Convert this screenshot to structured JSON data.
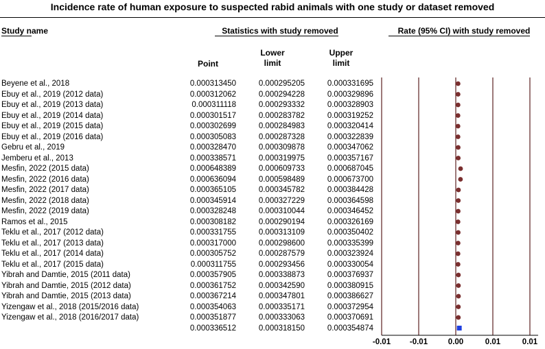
{
  "title": "Incidence rate of human exposure to suspected rabid animals with one study or dataset removed",
  "headers": {
    "study_name": "Study name",
    "statistics": "Statistics with study removed",
    "rate": "Rate (95% CI) with study removed",
    "point": "Point",
    "lower": "Lower limit",
    "lower_l1": "Lower",
    "lower_l2": "limit",
    "upper_l1": "Upper",
    "upper_l2": "limit"
  },
  "rows": [
    {
      "study": "Beyene et al., 2018",
      "point": "0.000313450",
      "lower": "0.000295205",
      "upper": "0.000331695"
    },
    {
      "study": "Ebuy et al., 2019 (2012 data)",
      "point": "0.000312062",
      "lower": "0.000294228",
      "upper": "0.000329896"
    },
    {
      "study": "Ebuy et al., 2019 (2013 data)",
      "point": "0.000311118",
      "lower": "0.000293332",
      "upper": "0.000328903"
    },
    {
      "study": "Ebuy et al., 2019 (2014 data)",
      "point": "0.000301517",
      "lower": "0.000283782",
      "upper": "0.000319252"
    },
    {
      "study": "Ebuy et al., 2019 (2015 data)",
      "point": "0.000302699",
      "lower": "0.000284983",
      "upper": "0.000320414"
    },
    {
      "study": "Ebuy et al., 2019 (2016 data)",
      "point": "0.000305083",
      "lower": "0.000287328",
      "upper": "0.000322839"
    },
    {
      "study": "Gebru et al., 2019",
      "point": "0.000328470",
      "lower": "0.000309878",
      "upper": "0.000347062"
    },
    {
      "study": "Jemberu et al., 2013",
      "point": "0.000338571",
      "lower": "0.000319975",
      "upper": "0.000357167"
    },
    {
      "study": "Mesfin, 2022 (2015 data)",
      "point": "0.000648389",
      "lower": "0.000609733",
      "upper": "0.000687045"
    },
    {
      "study": "Mesfin, 2022 (2016 data)",
      "point": "0.000636094",
      "lower": "0.000598489",
      "upper": "0.000673700"
    },
    {
      "study": "Mesfin, 2022 (2017 data)",
      "point": "0.000365105",
      "lower": "0.000345782",
      "upper": "0.000384428"
    },
    {
      "study": "Mesfin, 2022 (2018 data)",
      "point": "0.000345914",
      "lower": "0.000327229",
      "upper": "0.000364598"
    },
    {
      "study": "Mesfin, 2022 (2019 data)",
      "point": "0.000328248",
      "lower": "0.000310044",
      "upper": "0.000346452"
    },
    {
      "study": "Ramos et al., 2015",
      "point": "0.000308182",
      "lower": "0.000290194",
      "upper": "0.000326169"
    },
    {
      "study": "Teklu et al., 2017 (2012 data)",
      "point": "0.000331755",
      "lower": "0.000313109",
      "upper": "0.000350402"
    },
    {
      "study": "Teklu et al., 2017 (2013 data)",
      "point": "0.000317000",
      "lower": "0.000298600",
      "upper": "0.000335399"
    },
    {
      "study": "Teklu et al., 2017 (2014 data)",
      "point": "0.000305752",
      "lower": "0.000287579",
      "upper": "0.000323924"
    },
    {
      "study": "Teklu et al., 2017 (2015 data)",
      "point": "0.000311755",
      "lower": "0.000293456",
      "upper": "0.000330054"
    },
    {
      "study": "Yibrah and Damtie, 2015 (2011 data)",
      "point": "0.000357905",
      "lower": "0.000338873",
      "upper": "0.000376937"
    },
    {
      "study": "Yibrah and Damtie, 2015 (2012 data)",
      "point": "0.000361752",
      "lower": "0.000342590",
      "upper": "0.000380915"
    },
    {
      "study": "Yibrah and Damtie, 2015 (2013 data)",
      "point": "0.000367214",
      "lower": "0.000347801",
      "upper": "0.000386627"
    },
    {
      "study": "Yizengaw et al., 2018 (2015/2016 data)",
      "point": "0.000354063",
      "lower": "0.000335171",
      "upper": "0.000372954"
    },
    {
      "study": "Yizengaw et al., 2018 (2016/2017 data)",
      "point": "0.000351877",
      "lower": "0.000333063",
      "upper": "0.000370691"
    }
  ],
  "pooled": {
    "point": "0.000336512",
    "lower": "0.000318150",
    "upper": "0.000354874"
  },
  "chart_data": {
    "type": "forest",
    "title": "Incidence rate of human exposure to suspected rabid animals with one study or dataset removed",
    "xlim": [
      -0.01,
      0.01
    ],
    "x_ticks": [
      -0.01,
      -0.005,
      0.0,
      0.005,
      0.01
    ],
    "x_tick_labels": [
      "-0.01",
      "-0.01",
      "0.00",
      "0.01",
      "0.01"
    ],
    "series": [
      {
        "name": "",
        "values": [
          0.00031345,
          0.000312062,
          0.000311118,
          0.000301517,
          0.000302699,
          0.000305083,
          0.00032847,
          0.000338571,
          0.000648389,
          0.000636094,
          0.000365105,
          0.000345914,
          0.000328248,
          0.000308182,
          0.000331755,
          0.000317,
          0.000305752,
          0.000311755,
          0.000357905,
          0.000361752,
          0.000367214,
          0.000354063,
          0.000351877
        ]
      }
    ],
    "pooled_value": 0.000336512,
    "marker_color": "#7a2e2e",
    "pooled_color": "#1f3fe0"
  }
}
